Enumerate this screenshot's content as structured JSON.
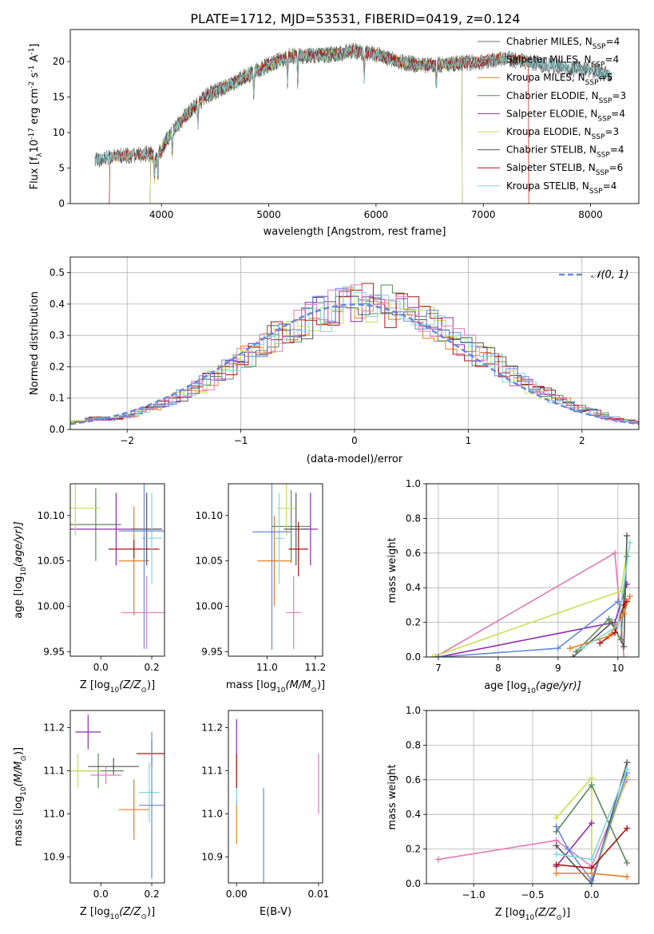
{
  "title": "PLATE=1712, MJD=53531, FIBERID=0419, z=0.124",
  "colors": [
    "#e67e22",
    "#5a8a5a",
    "#8e2bb0",
    "#c8e050",
    "#555555",
    "#b01010",
    "#7fd8d8",
    "#6688dd",
    "#e07ab8"
  ],
  "chart_data": [
    {
      "id": "spectrum",
      "type": "line",
      "xlabel": "wavelength [Angstrom, rest frame]",
      "ylabel": "Flux [f",
      "ylabel_sub": "λ",
      "ylabel_rest": "10",
      "ylabel_exp": "-17",
      "ylabel_units": " erg cm",
      "ylabel_exp2": "-2",
      "ylabel_s": " s",
      "ylabel_exp3": "-1",
      "ylabel_end": " A",
      "ylabel_exp4": "-1",
      "ylabel_close": "]",
      "xlim": [
        3150,
        8450
      ],
      "ylim": [
        0,
        24.5
      ],
      "xticks": [
        4000,
        5000,
        6000,
        7000,
        8000
      ],
      "yticks": [
        0,
        5,
        10,
        15,
        20
      ],
      "continuum": [
        [
          3380,
          6.0
        ],
        [
          3500,
          6.5
        ],
        [
          3700,
          6.8
        ],
        [
          3900,
          7.0
        ],
        [
          3950,
          6.2
        ],
        [
          4050,
          9.0
        ],
        [
          4200,
          12.0
        ],
        [
          4400,
          15.0
        ],
        [
          4600,
          16.5
        ],
        [
          4800,
          18.0
        ],
        [
          5000,
          19.5
        ],
        [
          5200,
          20.8
        ],
        [
          5400,
          20.8
        ],
        [
          5600,
          21.0
        ],
        [
          5800,
          21.5
        ],
        [
          6000,
          21.0
        ],
        [
          6200,
          20.0
        ],
        [
          6400,
          19.5
        ],
        [
          6600,
          19.5
        ],
        [
          6800,
          19.8
        ],
        [
          7000,
          20.0
        ],
        [
          7200,
          20.5
        ],
        [
          7400,
          20.0
        ],
        [
          7600,
          19.5
        ],
        [
          7800,
          19.0
        ],
        [
          8000,
          18.8
        ],
        [
          8200,
          18.0
        ]
      ],
      "series": [
        {
          "name": "Chabrier MILES",
          "n": "4",
          "color": "#6c6c6c",
          "start": 3380,
          "end": 8200
        },
        {
          "name": "Salpeter MILES",
          "n": "4",
          "color": "#6c6c6c",
          "start": 3380,
          "end": 8200
        },
        {
          "name": "Kroupa MILES",
          "n": "5",
          "color": "#e67e22",
          "start": 3520,
          "end": 7420
        },
        {
          "name": "Chabrier ELODIE",
          "n": "3",
          "color": "#5a8a5a",
          "start": 3900,
          "end": 6800
        },
        {
          "name": "Salpeter ELODIE",
          "n": "4",
          "color": "#8e2bb0",
          "start": 3900,
          "end": 6800
        },
        {
          "name": "Kroupa ELODIE",
          "n": "3",
          "color": "#c8e050",
          "start": 3900,
          "end": 6800
        },
        {
          "name": "Chabrier STELIB",
          "n": "4",
          "color": "#555555",
          "start": 3380,
          "end": 8200
        },
        {
          "name": "Salpeter STELIB",
          "n": "6",
          "color": "#b01010",
          "start": 3520,
          "end": 7420
        },
        {
          "name": "Kroupa STELIB",
          "n": "4",
          "color": "#7fd8d8",
          "start": 3380,
          "end": 8200
        }
      ],
      "legend_prefix": "N",
      "legend_sub": "SSP"
    },
    {
      "id": "residuals",
      "type": "histogram",
      "xlabel": "(data-model)/error",
      "ylabel": "Normed distribution",
      "xlim": [
        -2.5,
        2.5
      ],
      "ylim": [
        0,
        0.55
      ],
      "xticks": [
        -2,
        -1,
        0,
        1,
        2
      ],
      "yticks": [
        0,
        0.1,
        0.2,
        0.3,
        0.4,
        0.5
      ],
      "xticklabels": [
        "−2",
        "−1",
        "0",
        "1",
        "2"
      ],
      "legend": "𝒩(0, 1)",
      "gaussian_color": "#6688dd"
    },
    {
      "id": "age-z",
      "type": "errorbar",
      "xlabel": "Z [log",
      "xlabel_sub": "10",
      "xlabel_rest": "(Z/Z",
      "xlabel_sub2": "⊙",
      "xlabel_end": ")]",
      "ylabel": "age  [log",
      "ylabel_sub": "10",
      "ylabel_rest": "(age/yr)]",
      "xlim": [
        -0.12,
        0.25
      ],
      "ylim": [
        9.945,
        10.135
      ],
      "xticks": [
        0.0,
        0.2
      ],
      "yticks": [
        9.95,
        10.0,
        10.05,
        10.1
      ],
      "points": [
        {
          "x": 0.13,
          "y": 10.05,
          "xerr": 0.06,
          "yerr": 0.06,
          "c": "#e67e22"
        },
        {
          "x": -0.02,
          "y": 10.09,
          "xerr": 0.1,
          "yerr": 0.04,
          "c": "#5a8a5a"
        },
        {
          "x": 0.06,
          "y": 10.085,
          "xerr": 0.18,
          "yerr": 0.04,
          "c": "#8e2bb0"
        },
        {
          "x": -0.1,
          "y": 10.108,
          "xerr": 0.1,
          "yerr": 0.03,
          "c": "#c8e050"
        },
        {
          "x": 0.18,
          "y": 10.085,
          "xerr": 0.06,
          "yerr": 0.04,
          "c": "#555555"
        },
        {
          "x": 0.13,
          "y": 10.063,
          "xerr": 0.1,
          "yerr": 0.01,
          "c": "#b01010"
        },
        {
          "x": 0.2,
          "y": 10.075,
          "xerr": 0.04,
          "yerr": 0.05,
          "c": "#7fd8d8"
        },
        {
          "x": 0.17,
          "y": 10.083,
          "xerr": 0.1,
          "yerr": 0.13,
          "c": "#6688dd"
        },
        {
          "x": 0.18,
          "y": 9.993,
          "xerr": 0.1,
          "yerr": 0.04,
          "c": "#e07ab8"
        }
      ]
    },
    {
      "id": "age-mass",
      "type": "errorbar",
      "xlabel": "mass [log",
      "xlabel_sub": "10",
      "xlabel_rest": "(M/M",
      "xlabel_sub2": "⊙",
      "xlabel_end": ")]",
      "xlim": [
        10.84,
        11.23
      ],
      "ylim": [
        9.945,
        10.135
      ],
      "xticks": [
        11.0,
        11.2
      ],
      "yticks": [
        9.95,
        10.0,
        10.05,
        10.1
      ],
      "points": [
        {
          "x": 11.03,
          "y": 10.05,
          "xerr": 0.07,
          "yerr": 0.05,
          "c": "#e67e22"
        },
        {
          "x": 11.1,
          "y": 10.088,
          "xerr": 0.08,
          "yerr": 0.04,
          "c": "#5a8a5a"
        },
        {
          "x": 11.18,
          "y": 10.085,
          "xerr": 0.03,
          "yerr": 0.04,
          "c": "#8e2bb0"
        },
        {
          "x": 11.08,
          "y": 10.108,
          "xerr": 0.04,
          "yerr": 0.03,
          "c": "#c8e050"
        },
        {
          "x": 11.12,
          "y": 10.085,
          "xerr": 0.05,
          "yerr": 0.04,
          "c": "#555555"
        },
        {
          "x": 11.13,
          "y": 10.063,
          "xerr": 0.04,
          "yerr": 0.03,
          "c": "#b01010"
        },
        {
          "x": 11.05,
          "y": 10.075,
          "xerr": 0.02,
          "yerr": 0.05,
          "c": "#7fd8d8"
        },
        {
          "x": 11.02,
          "y": 10.082,
          "xerr": 0.08,
          "yerr": 0.13,
          "c": "#6688dd"
        },
        {
          "x": 11.11,
          "y": 9.993,
          "xerr": 0.03,
          "yerr": 0.04,
          "c": "#e07ab8"
        }
      ]
    },
    {
      "id": "weight-age",
      "type": "line",
      "xlabel": "age  [log",
      "xlabel_sub": "10",
      "xlabel_rest": "(age/yr)]",
      "ylabel": "mass weight",
      "xlim": [
        6.8,
        10.35
      ],
      "ylim": [
        0,
        1.0
      ],
      "xticks": [
        7,
        8,
        9,
        10
      ],
      "yticks": [
        0.0,
        0.2,
        0.4,
        0.6,
        0.8,
        1.0
      ],
      "series": [
        {
          "c": "#e07ab8",
          "pts": [
            [
              6.95,
              0.0
            ],
            [
              9.95,
              0.6
            ],
            [
              10.1,
              0.0
            ]
          ]
        },
        {
          "c": "#c8e050",
          "pts": [
            [
              6.9,
              0.0
            ],
            [
              10.05,
              0.38
            ],
            [
              10.15,
              0.6
            ]
          ]
        },
        {
          "c": "#8e2bb0",
          "pts": [
            [
              7.0,
              0.0
            ],
            [
              9.95,
              0.2
            ],
            [
              10.15,
              0.42
            ]
          ]
        },
        {
          "c": "#6688dd",
          "pts": [
            [
              7.0,
              0.0
            ],
            [
              9.0,
              0.05
            ],
            [
              10.0,
              0.32
            ]
          ]
        },
        {
          "c": "#555555",
          "pts": [
            [
              9.25,
              0.0
            ],
            [
              9.9,
              0.2
            ],
            [
              10.1,
              0.06
            ],
            [
              10.15,
              0.7
            ]
          ]
        },
        {
          "c": "#5a8a5a",
          "pts": [
            [
              9.3,
              0.03
            ],
            [
              9.85,
              0.22
            ],
            [
              10.05,
              0.1
            ],
            [
              10.15,
              0.58
            ]
          ]
        },
        {
          "c": "#b01010",
          "pts": [
            [
              9.7,
              0.08
            ],
            [
              9.95,
              0.14
            ],
            [
              10.1,
              0.3
            ],
            [
              10.15,
              0.32
            ]
          ]
        },
        {
          "c": "#e67e22",
          "pts": [
            [
              9.2,
              0.05
            ],
            [
              9.85,
              0.12
            ],
            [
              10.1,
              0.25
            ],
            [
              10.2,
              0.35
            ]
          ]
        },
        {
          "c": "#7fd8d8",
          "pts": [
            [
              9.4,
              0.05
            ],
            [
              10.0,
              0.18
            ],
            [
              10.2,
              0.66
            ]
          ]
        }
      ]
    },
    {
      "id": "mass-z",
      "type": "errorbar",
      "xlabel": "Z [log",
      "xlabel_sub": "10",
      "xlabel_rest": "(Z/Z",
      "xlabel_sub2": "⊙",
      "xlabel_end": ")]",
      "ylabel": "mass [log",
      "ylabel_sub": "10",
      "ylabel_rest": "(M/M",
      "ylabel_sub2": "⊙",
      "ylabel_end": ")]",
      "xlim": [
        -0.12,
        0.25
      ],
      "ylim": [
        10.84,
        11.24
      ],
      "xticks": [
        0.0,
        0.2
      ],
      "yticks": [
        10.9,
        11.0,
        11.1,
        11.2
      ],
      "points": [
        {
          "x": 0.13,
          "y": 11.01,
          "xerr": 0.06,
          "yerr": 0.07,
          "c": "#e67e22"
        },
        {
          "x": -0.01,
          "y": 11.1,
          "xerr": 0.1,
          "yerr": 0.04,
          "c": "#5a8a5a"
        },
        {
          "x": -0.05,
          "y": 11.19,
          "xerr": 0.05,
          "yerr": 0.04,
          "c": "#8e2bb0"
        },
        {
          "x": -0.09,
          "y": 11.1,
          "xerr": 0.09,
          "yerr": 0.04,
          "c": "#c8e050"
        },
        {
          "x": 0.05,
          "y": 11.11,
          "xerr": 0.1,
          "yerr": 0.02,
          "c": "#555555"
        },
        {
          "x": 0.2,
          "y": 11.14,
          "xerr": 0.06,
          "yerr": 0.03,
          "c": "#b01010"
        },
        {
          "x": 0.19,
          "y": 11.05,
          "xerr": 0.04,
          "yerr": 0.07,
          "c": "#7fd8d8"
        },
        {
          "x": 0.2,
          "y": 11.02,
          "xerr": 0.05,
          "yerr": 0.17,
          "c": "#6688dd"
        },
        {
          "x": 0.02,
          "y": 11.09,
          "xerr": 0.06,
          "yerr": 0.02,
          "c": "#e07ab8"
        }
      ]
    },
    {
      "id": "mass-ebv",
      "type": "errorbar",
      "xlabel": "E(B-V)",
      "xlim": [
        -0.001,
        0.0105
      ],
      "ylim": [
        10.84,
        11.24
      ],
      "xticks": [
        0.0,
        0.01
      ],
      "yticks": [
        10.9,
        11.0,
        11.1,
        11.2
      ],
      "points": [
        {
          "x": 0.0,
          "y": 10.98,
          "xerr": 0,
          "yerr": 0.05,
          "c": "#e67e22"
        },
        {
          "x": 0.0,
          "y": 11.1,
          "xerr": 0,
          "yerr": 0.03,
          "c": "#5a8a5a"
        },
        {
          "x": 0.0,
          "y": 11.17,
          "xerr": 0,
          "yerr": 0.05,
          "c": "#8e2bb0"
        },
        {
          "x": 0.0,
          "y": 11.09,
          "xerr": 0,
          "yerr": 0.05,
          "c": "#c8e050"
        },
        {
          "x": 0.0,
          "y": 11.06,
          "xerr": 0,
          "yerr": 0.04,
          "c": "#7fd8d8"
        },
        {
          "x": 0.0,
          "y": 11.1,
          "xerr": 0,
          "yerr": 0.04,
          "c": "#b01010"
        },
        {
          "x": 0.0033,
          "y": 10.95,
          "xerr": 0,
          "yerr": 0.11,
          "c": "#6688dd"
        },
        {
          "x": 0.01,
          "y": 11.07,
          "xerr": 0,
          "yerr": 0.07,
          "c": "#e07ab8"
        }
      ]
    },
    {
      "id": "weight-z",
      "type": "line",
      "xlabel": "Z [log",
      "xlabel_sub": "10",
      "xlabel_rest": "(Z/Z",
      "xlabel_sub2": "⊙",
      "xlabel_end": ")]",
      "ylabel": "mass weight",
      "xlim": [
        -1.4,
        0.4
      ],
      "ylim": [
        0,
        1.0
      ],
      "xticks": [
        -1.0,
        -0.5,
        0.0
      ],
      "xticklabels": [
        "−1.0",
        "−0.5",
        "0.0"
      ],
      "yticks": [
        0.0,
        0.2,
        0.4,
        0.6,
        0.8,
        1.0
      ],
      "series": [
        {
          "c": "#e07ab8",
          "pts": [
            [
              -1.3,
              0.14
            ],
            [
              -0.3,
              0.25
            ],
            [
              0.0,
              0.1
            ],
            [
              0.3,
              0.6
            ]
          ]
        },
        {
          "c": "#c8e050",
          "pts": [
            [
              -0.3,
              0.38
            ],
            [
              0.0,
              0.61
            ],
            [
              0.0,
              0.0
            ],
            [
              0.3,
              0.62
            ]
          ]
        },
        {
          "c": "#5a8a5a",
          "pts": [
            [
              -0.3,
              0.3
            ],
            [
              0.0,
              0.57
            ],
            [
              0.3,
              0.12
            ]
          ]
        },
        {
          "c": "#555555",
          "pts": [
            [
              -0.3,
              0.22
            ],
            [
              0.0,
              0.0
            ],
            [
              0.3,
              0.7
            ]
          ]
        },
        {
          "c": "#8e2bb0",
          "pts": [
            [
              -0.3,
              0.1
            ],
            [
              0.0,
              0.35
            ]
          ]
        },
        {
          "c": "#6688dd",
          "pts": [
            [
              -0.3,
              0.33
            ],
            [
              -0.2,
              0.2
            ],
            [
              0.0,
              0.02
            ],
            [
              0.3,
              0.64
            ]
          ]
        },
        {
          "c": "#b01010",
          "pts": [
            [
              -0.3,
              0.11
            ],
            [
              0.0,
              0.09
            ],
            [
              0.3,
              0.32
            ]
          ]
        },
        {
          "c": "#e67e22",
          "pts": [
            [
              -0.3,
              0.06
            ],
            [
              0.0,
              0.06
            ],
            [
              0.3,
              0.04
            ]
          ]
        },
        {
          "c": "#7fd8d8",
          "pts": [
            [
              -0.3,
              0.17
            ],
            [
              0.0,
              0.14
            ],
            [
              0.3,
              0.66
            ]
          ]
        }
      ]
    }
  ]
}
